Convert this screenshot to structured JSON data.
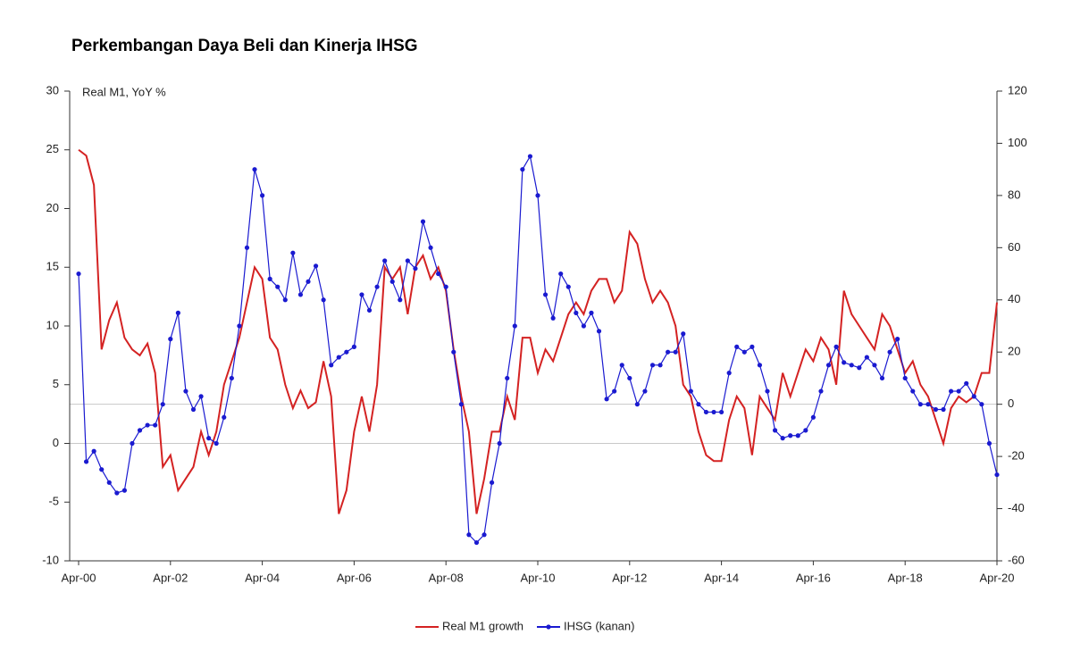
{
  "chart_data": {
    "type": "line",
    "title": "Perkembangan Daya Beli dan Kinerja IHSG",
    "y_label": "Real M1, YoY %",
    "categories": [
      "Apr-00",
      null,
      null,
      null,
      null,
      null,
      null,
      null,
      null,
      null,
      null,
      null,
      "Apr-02",
      null,
      null,
      null,
      null,
      null,
      null,
      null,
      null,
      null,
      null,
      null,
      "Apr-04",
      null,
      null,
      null,
      null,
      null,
      null,
      null,
      null,
      null,
      null,
      null,
      "Apr-06",
      null,
      null,
      null,
      null,
      null,
      null,
      null,
      null,
      null,
      null,
      null,
      "Apr-08",
      null,
      null,
      null,
      null,
      null,
      null,
      null,
      null,
      null,
      null,
      null,
      "Apr-10",
      null,
      null,
      null,
      null,
      null,
      null,
      null,
      null,
      null,
      null,
      null,
      "Apr-12",
      null,
      null,
      null,
      null,
      null,
      null,
      null,
      null,
      null,
      null,
      null,
      "Apr-14",
      null,
      null,
      null,
      null,
      null,
      null,
      null,
      null,
      null,
      null,
      null,
      "Apr-16",
      null,
      null,
      null,
      null,
      null,
      null,
      null,
      null,
      null,
      null,
      null,
      "Apr-18",
      null,
      null,
      null,
      null,
      null,
      null,
      null,
      null,
      null,
      null,
      null,
      "Apr-20"
    ],
    "series": [
      {
        "name": "Real M1 growth",
        "color": "#d42222",
        "markers": false,
        "values": [
          25,
          24.5,
          22,
          8,
          10.5,
          12,
          9,
          8,
          7.5,
          8.5,
          6,
          -2,
          -1,
          -4,
          -3,
          -2,
          1,
          -1,
          1,
          5,
          7,
          9,
          12,
          15,
          14,
          9,
          8,
          5,
          3,
          4.5,
          3,
          3.5,
          7,
          4,
          -6,
          -4,
          1,
          4,
          1,
          5,
          15,
          14,
          15,
          11,
          15,
          16,
          14,
          15,
          13,
          8,
          4,
          1,
          -6,
          -3,
          1,
          1,
          4,
          2,
          9,
          9,
          6,
          8,
          7,
          9,
          11,
          12,
          11,
          13,
          14,
          14,
          12,
          13,
          18,
          17,
          14,
          12,
          13,
          12,
          10,
          5,
          4,
          1,
          -1,
          -1.5,
          -1.5,
          2,
          4,
          3,
          -1,
          4,
          3,
          2,
          6,
          4,
          6,
          8,
          7,
          9,
          8,
          5,
          13,
          11,
          10,
          9,
          8,
          11,
          10,
          8,
          6,
          7,
          5,
          4,
          2,
          0,
          3,
          4,
          3.5,
          4,
          6,
          6,
          12
        ]
      },
      {
        "name": "IHSG (kanan)",
        "color": "#1a1ad0",
        "markers": true,
        "axis": "y2",
        "values": [
          50,
          -22,
          -18,
          -25,
          -30,
          -34,
          -33,
          -15,
          -10,
          -8,
          -8,
          0,
          25,
          35,
          5,
          -2,
          3,
          -13,
          -15,
          -5,
          10,
          30,
          60,
          90,
          80,
          48,
          45,
          40,
          58,
          42,
          47,
          53,
          40,
          15,
          18,
          20,
          22,
          42,
          36,
          45,
          55,
          47,
          40,
          55,
          52,
          70,
          60,
          50,
          45,
          20,
          0,
          -50,
          -53,
          -50,
          -30,
          -15,
          10,
          30,
          90,
          95,
          80,
          42,
          33,
          50,
          45,
          35,
          30,
          35,
          28,
          2,
          5,
          15,
          10,
          0,
          5,
          15,
          15,
          20,
          20,
          27,
          5,
          0,
          -3,
          -3,
          -3,
          12,
          22,
          20,
          22,
          15,
          5,
          -10,
          -13,
          -12,
          -12,
          -10,
          -5,
          5,
          15,
          22,
          16,
          15,
          14,
          18,
          15,
          10,
          20,
          25,
          10,
          5,
          0,
          0,
          -2,
          -2,
          5,
          5,
          8,
          3,
          0,
          -15,
          -27
        ]
      }
    ],
    "ylim": [
      -10,
      30
    ],
    "yticks": [
      -10,
      -5,
      0,
      5,
      10,
      15,
      20,
      25,
      30
    ],
    "y2lim": [
      -60,
      120
    ],
    "y2ticks": [
      -60,
      -40,
      -20,
      0,
      20,
      40,
      60,
      80,
      100,
      120
    ],
    "legend": "bottom"
  }
}
